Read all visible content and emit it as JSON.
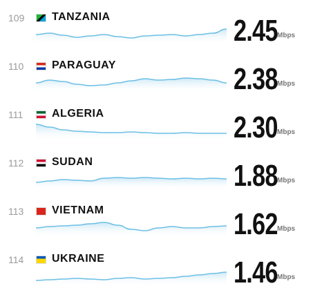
{
  "rows": [
    {
      "rank": "109",
      "country": "TANZANIA",
      "speed": "2.45",
      "unit": "Mbps"
    },
    {
      "rank": "110",
      "country": "PARAGUAY",
      "speed": "2.38",
      "unit": "Mbps"
    },
    {
      "rank": "111",
      "country": "ALGERIA",
      "speed": "2.30",
      "unit": "Mbps"
    },
    {
      "rank": "112",
      "country": "SUDAN",
      "speed": "1.88",
      "unit": "Mbps"
    },
    {
      "rank": "113",
      "country": "VIETNAM",
      "speed": "1.62",
      "unit": "Mbps"
    },
    {
      "rank": "114",
      "country": "UKRAINE",
      "speed": "1.46",
      "unit": "Mbps"
    }
  ]
}
